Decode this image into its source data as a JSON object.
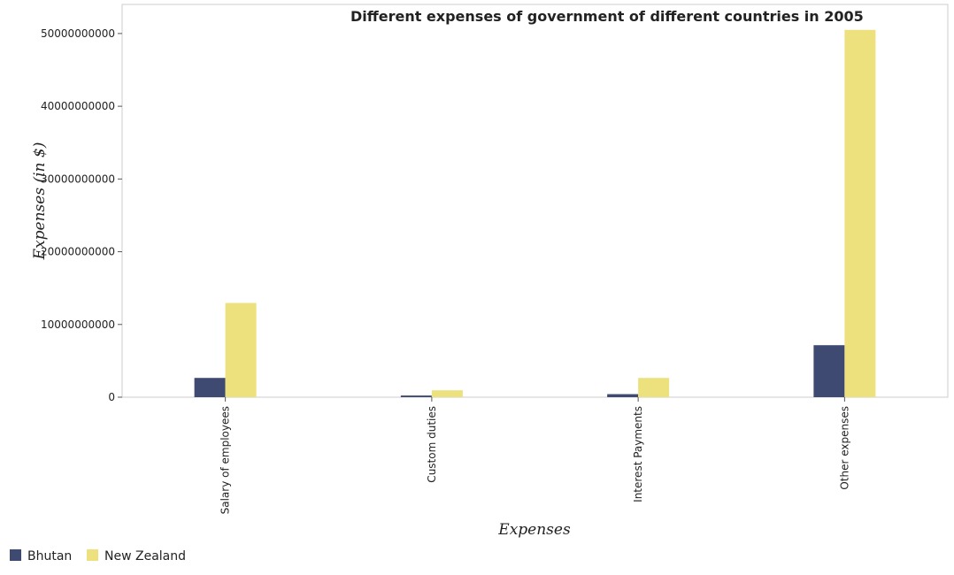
{
  "chart_data": {
    "type": "bar",
    "title": "Different expenses of government of different countries in 2005",
    "xlabel": "Expenses",
    "ylabel": "Expenses (in $)",
    "categories": [
      "Salary of employees",
      "Custom duties",
      "Interest Payments",
      "Other expenses"
    ],
    "series": [
      {
        "name": "Bhutan",
        "color": "#3f4a73",
        "values": [
          2650000000,
          230000000,
          420000000,
          7150000000
        ]
      },
      {
        "name": "New Zealand",
        "color": "#ece17c",
        "values": [
          12950000000,
          950000000,
          2650000000,
          50500000000
        ]
      }
    ],
    "ylim": [
      0,
      54000000000
    ],
    "yticks": [
      0,
      10000000000,
      20000000000,
      30000000000,
      40000000000,
      50000000000
    ],
    "ytick_labels": [
      "0",
      "10000000000",
      "20000000000",
      "30000000000",
      "40000000000",
      "50000000000"
    ],
    "grid": false,
    "legend_position": "bottom-left"
  }
}
